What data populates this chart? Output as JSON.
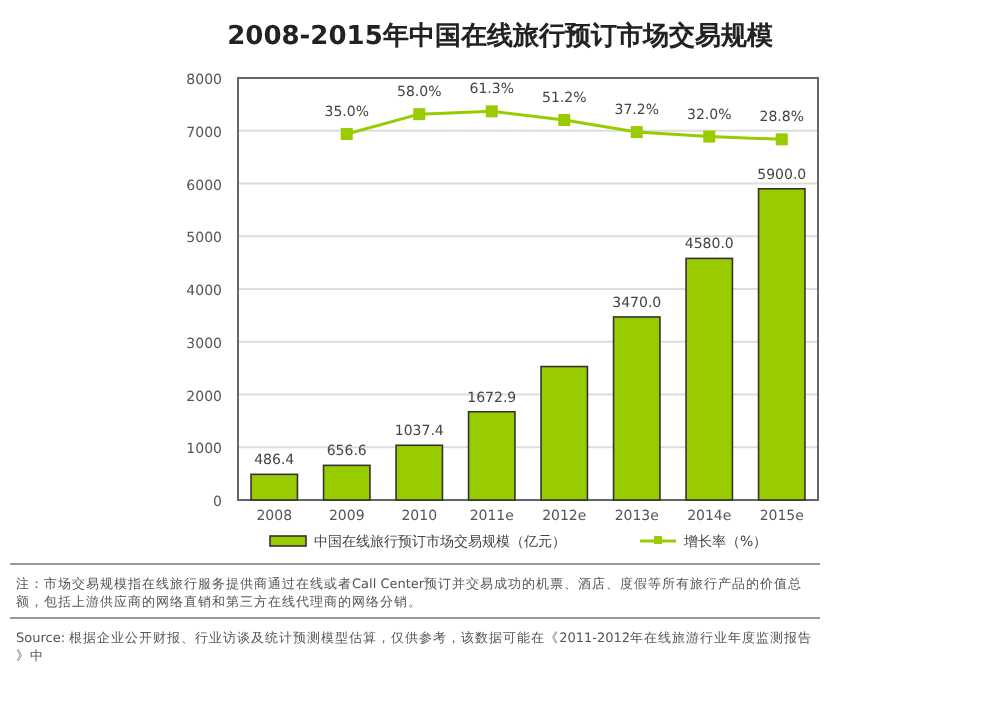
{
  "chart_data": {
    "type": "bar",
    "title": "2008-2015年中国在线旅行预订市场交易规模",
    "categories": [
      "2008",
      "2009",
      "2010",
      "2011e",
      "2012e",
      "2013e",
      "2014e",
      "2015e"
    ],
    "series": [
      {
        "name": "中国在线旅行预订市场交易规模（亿元）",
        "color": "#99cc00",
        "values": [
          486.4,
          656.6,
          1037.4,
          1672.9,
          2530,
          3470.0,
          4580.0,
          5900.0
        ],
        "value_labels": [
          "486.4",
          "656.6",
          "1037.4",
          "1672.9",
          null,
          "3470.0",
          "4580.0",
          "5900.0"
        ]
      },
      {
        "name": "增长率（%）",
        "type": "line",
        "axis": "y2",
        "color": "#99cc00",
        "values": [
          null,
          35.0,
          58.0,
          61.3,
          51.2,
          37.2,
          32.0,
          28.8
        ],
        "value_labels": [
          null,
          "35.0%",
          "58.0%",
          "61.3%",
          "51.2%",
          "37.2%",
          "32.0%",
          "28.8%"
        ]
      }
    ],
    "ylim": [
      0,
      8000
    ],
    "yticks": [
      0,
      1000,
      2000,
      3000,
      4000,
      5000,
      6000,
      7000,
      8000
    ],
    "y2lim": [
      -390,
      100
    ],
    "grid": "y",
    "legend": "bottom",
    "marker": "square",
    "annotations": [
      "注：市场交易规模指在线旅行服务提供商通过在线或者Call Center预订并交易成功的机票、酒店、度假等所有旅行产品的价值总额，包括上游供应商的网络直销和第三方在线代理商的网络分销。",
      "Source: 根据企业公开财报、行业访谈及统计预测模型估算，仅供参考，该数据可能在《2011-2012年在线旅游行业年度监测报告》中"
    ]
  }
}
